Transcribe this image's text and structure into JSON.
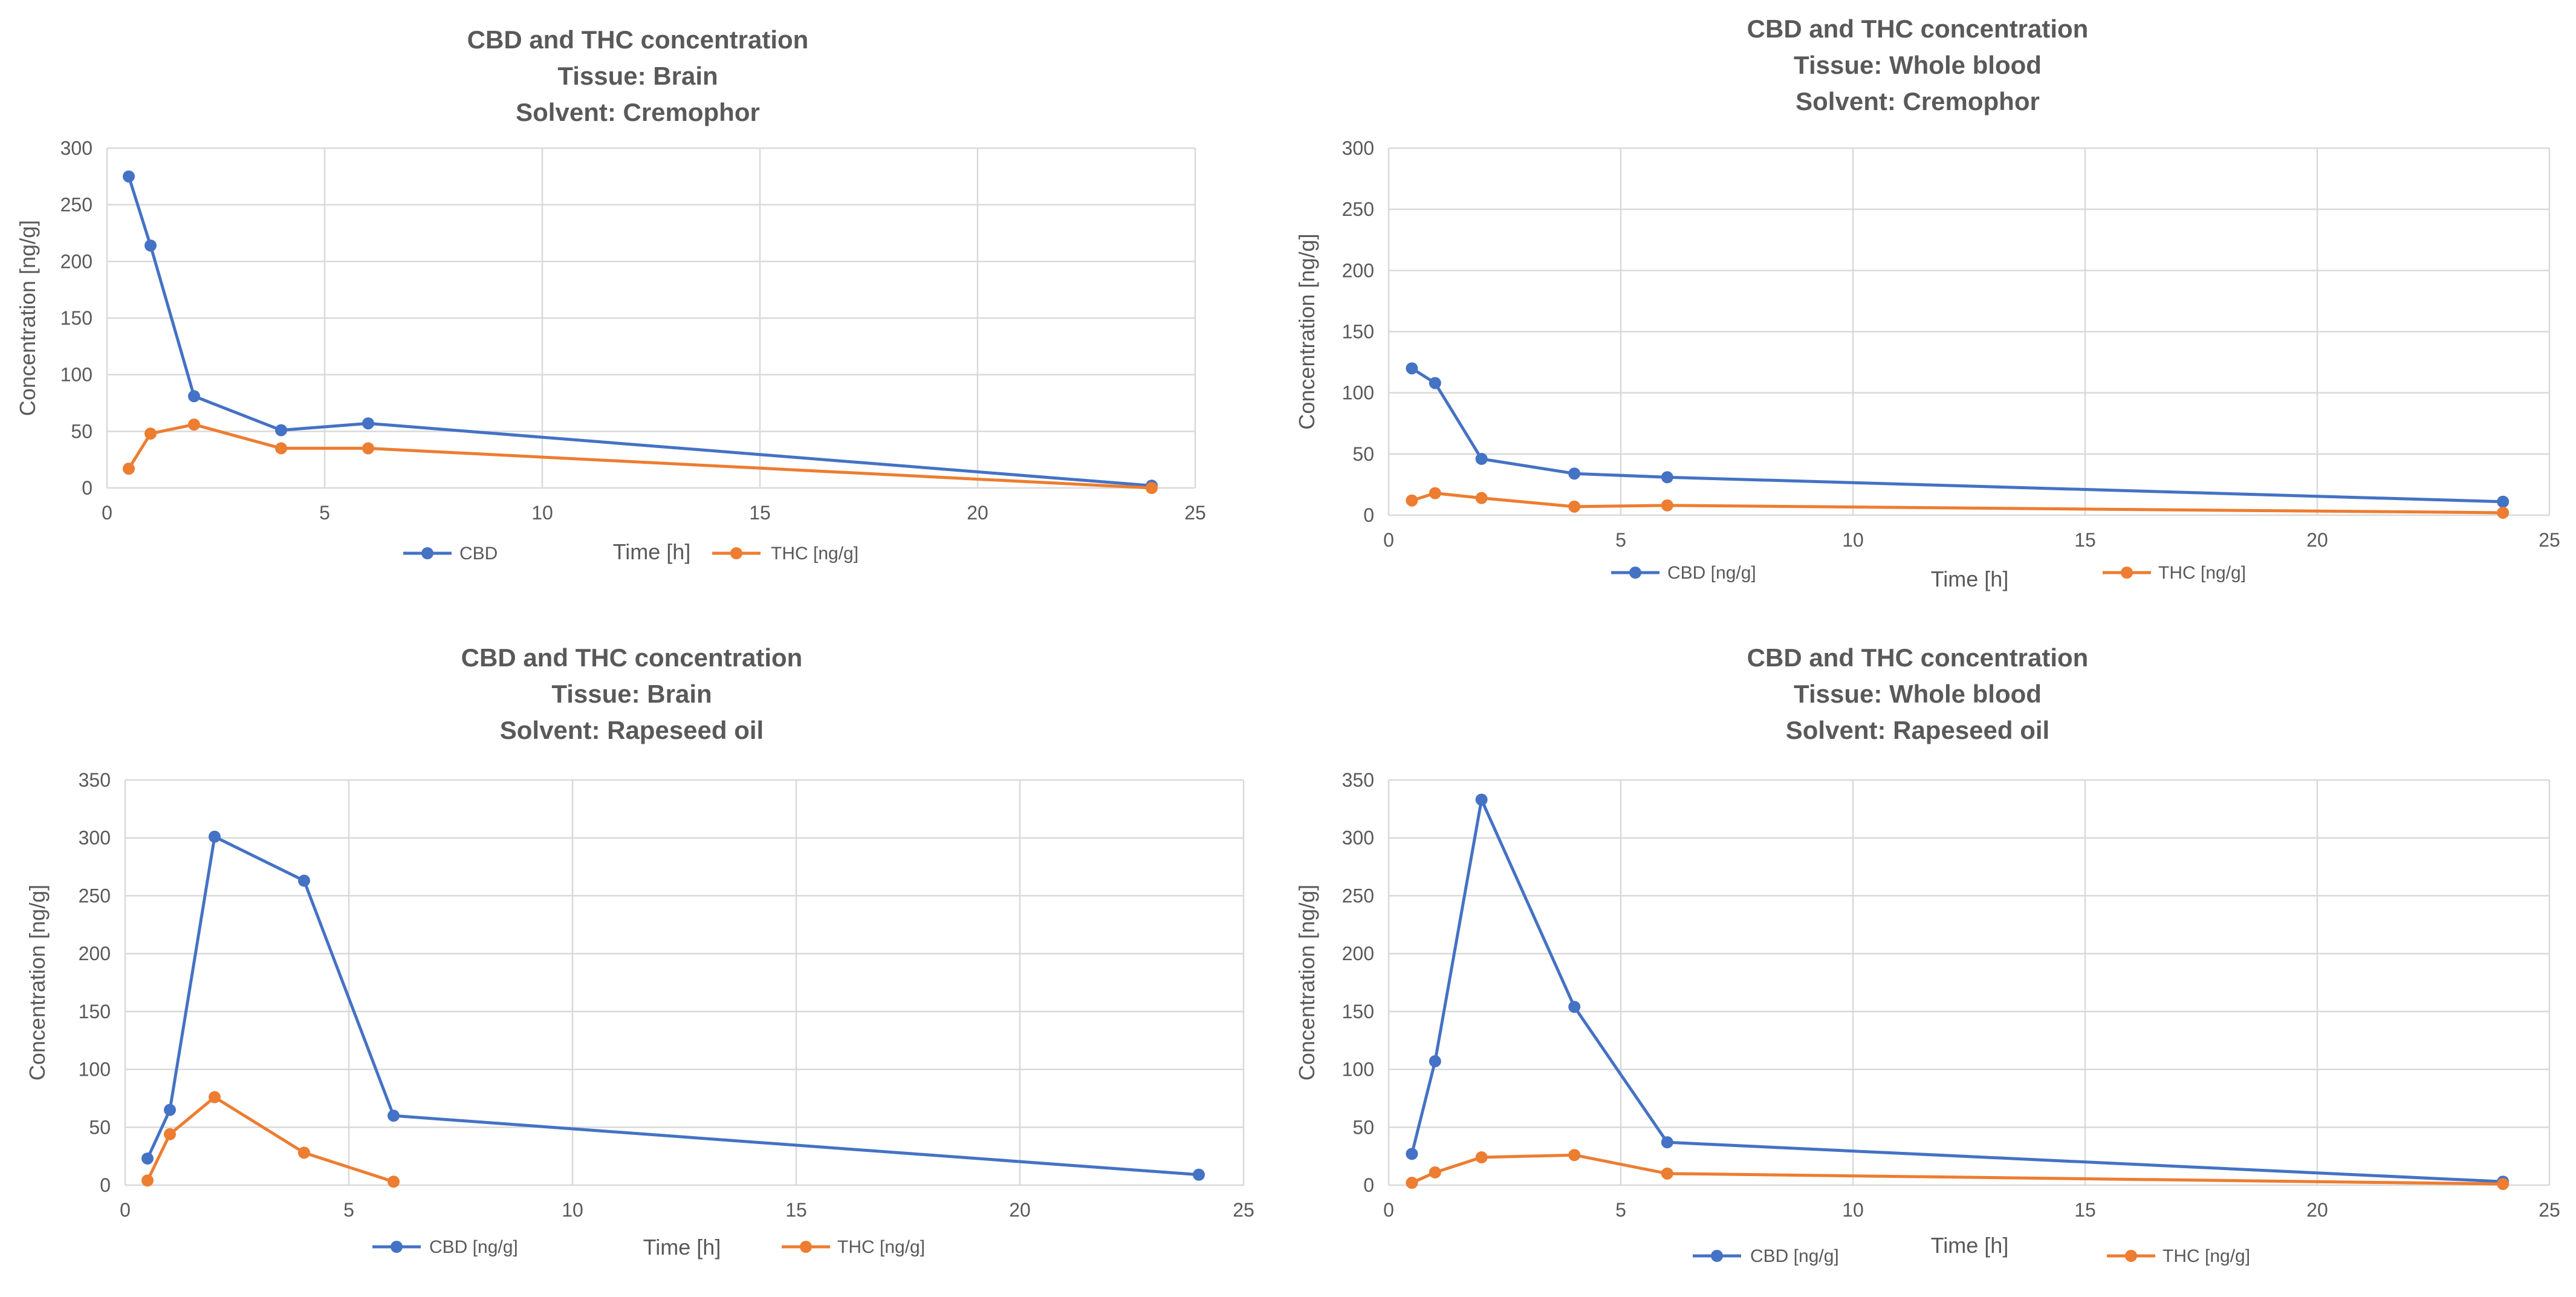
{
  "chart_data": [
    {
      "type": "line",
      "title": [
        "CBD and THC concentration",
        "Tissue: Brain",
        "Solvent: Cremophor"
      ],
      "xlabel": "Time [h]",
      "ylabel": "Concentration [ng/g]",
      "xlim": [
        0,
        25
      ],
      "ylim": [
        0,
        300
      ],
      "xticks": [
        0,
        5,
        10,
        15,
        20,
        25
      ],
      "yticks": [
        0,
        50,
        100,
        150,
        200,
        250,
        300
      ],
      "grid": true,
      "legend": "bottom",
      "series": [
        {
          "name": "CBD",
          "color": "#4472c4",
          "x": [
            0.5,
            1,
            2,
            4,
            6,
            24
          ],
          "y": [
            275,
            214,
            81,
            51,
            57,
            2
          ]
        },
        {
          "name": "THC [ng/g]",
          "color": "#ed7d31",
          "x": [
            0.5,
            1,
            2,
            4,
            6,
            24
          ],
          "y": [
            17,
            48,
            56,
            35,
            35,
            0
          ]
        }
      ]
    },
    {
      "type": "line",
      "title": [
        "CBD and THC concentration",
        "Tissue: Whole blood",
        "Solvent: Cremophor"
      ],
      "xlabel": "Time [h]",
      "ylabel": "Concentration [ng/g]",
      "xlim": [
        0,
        25
      ],
      "ylim": [
        0,
        300
      ],
      "xticks": [
        0,
        5,
        10,
        15,
        20,
        25
      ],
      "yticks": [
        0,
        50,
        100,
        150,
        200,
        250,
        300
      ],
      "grid": true,
      "legend": "bottom",
      "series": [
        {
          "name": "CBD [ng/g]",
          "color": "#4472c4",
          "x": [
            0.5,
            1,
            2,
            4,
            6,
            24
          ],
          "y": [
            120,
            108,
            46,
            34,
            31,
            11
          ]
        },
        {
          "name": "THC [ng/g]",
          "color": "#ed7d31",
          "x": [
            0.5,
            1,
            2,
            4,
            6,
            24
          ],
          "y": [
            12,
            18,
            14,
            7,
            8,
            2
          ]
        }
      ]
    },
    {
      "type": "line",
      "title": [
        "CBD and THC concentration",
        "Tissue: Brain",
        "Solvent: Rapeseed oil"
      ],
      "xlabel": "Time [h]",
      "ylabel": "Concentration [ng/g]",
      "xlim": [
        0,
        25
      ],
      "ylim": [
        0,
        350
      ],
      "xticks": [
        0,
        5,
        10,
        15,
        20,
        25
      ],
      "yticks": [
        0,
        50,
        100,
        150,
        200,
        250,
        300,
        350
      ],
      "grid": true,
      "legend": "bottom",
      "series": [
        {
          "name": "CBD  [ng/g]",
          "color": "#4472c4",
          "x": [
            0.5,
            1,
            2,
            4,
            6,
            24
          ],
          "y": [
            23,
            65,
            301,
            263,
            60,
            9
          ]
        },
        {
          "name": "THC [ng/g]",
          "color": "#ed7d31",
          "x": [
            0.5,
            1,
            2,
            4,
            6
          ],
          "y": [
            4,
            44,
            76,
            28,
            3
          ]
        }
      ]
    },
    {
      "type": "line",
      "title": [
        "CBD and THC concentration",
        "Tissue: Whole blood",
        "Solvent: Rapeseed oil"
      ],
      "xlabel": "Time [h]",
      "ylabel": "Concentration [ng/g]",
      "xlim": [
        0,
        25
      ],
      "ylim": [
        0,
        350
      ],
      "xticks": [
        0,
        5,
        10,
        15,
        20,
        25
      ],
      "yticks": [
        0,
        50,
        100,
        150,
        200,
        250,
        300,
        350
      ],
      "grid": true,
      "legend": "bottom",
      "series": [
        {
          "name": "CBD [ng/g]",
          "color": "#4472c4",
          "x": [
            0.5,
            1,
            2,
            4,
            6,
            24
          ],
          "y": [
            27,
            107,
            333,
            154,
            37,
            3
          ]
        },
        {
          "name": "THC [ng/g]",
          "color": "#ed7d31",
          "x": [
            0.5,
            1,
            2,
            4,
            6,
            24
          ],
          "y": [
            2,
            11,
            24,
            26,
            10,
            1
          ]
        }
      ]
    }
  ]
}
